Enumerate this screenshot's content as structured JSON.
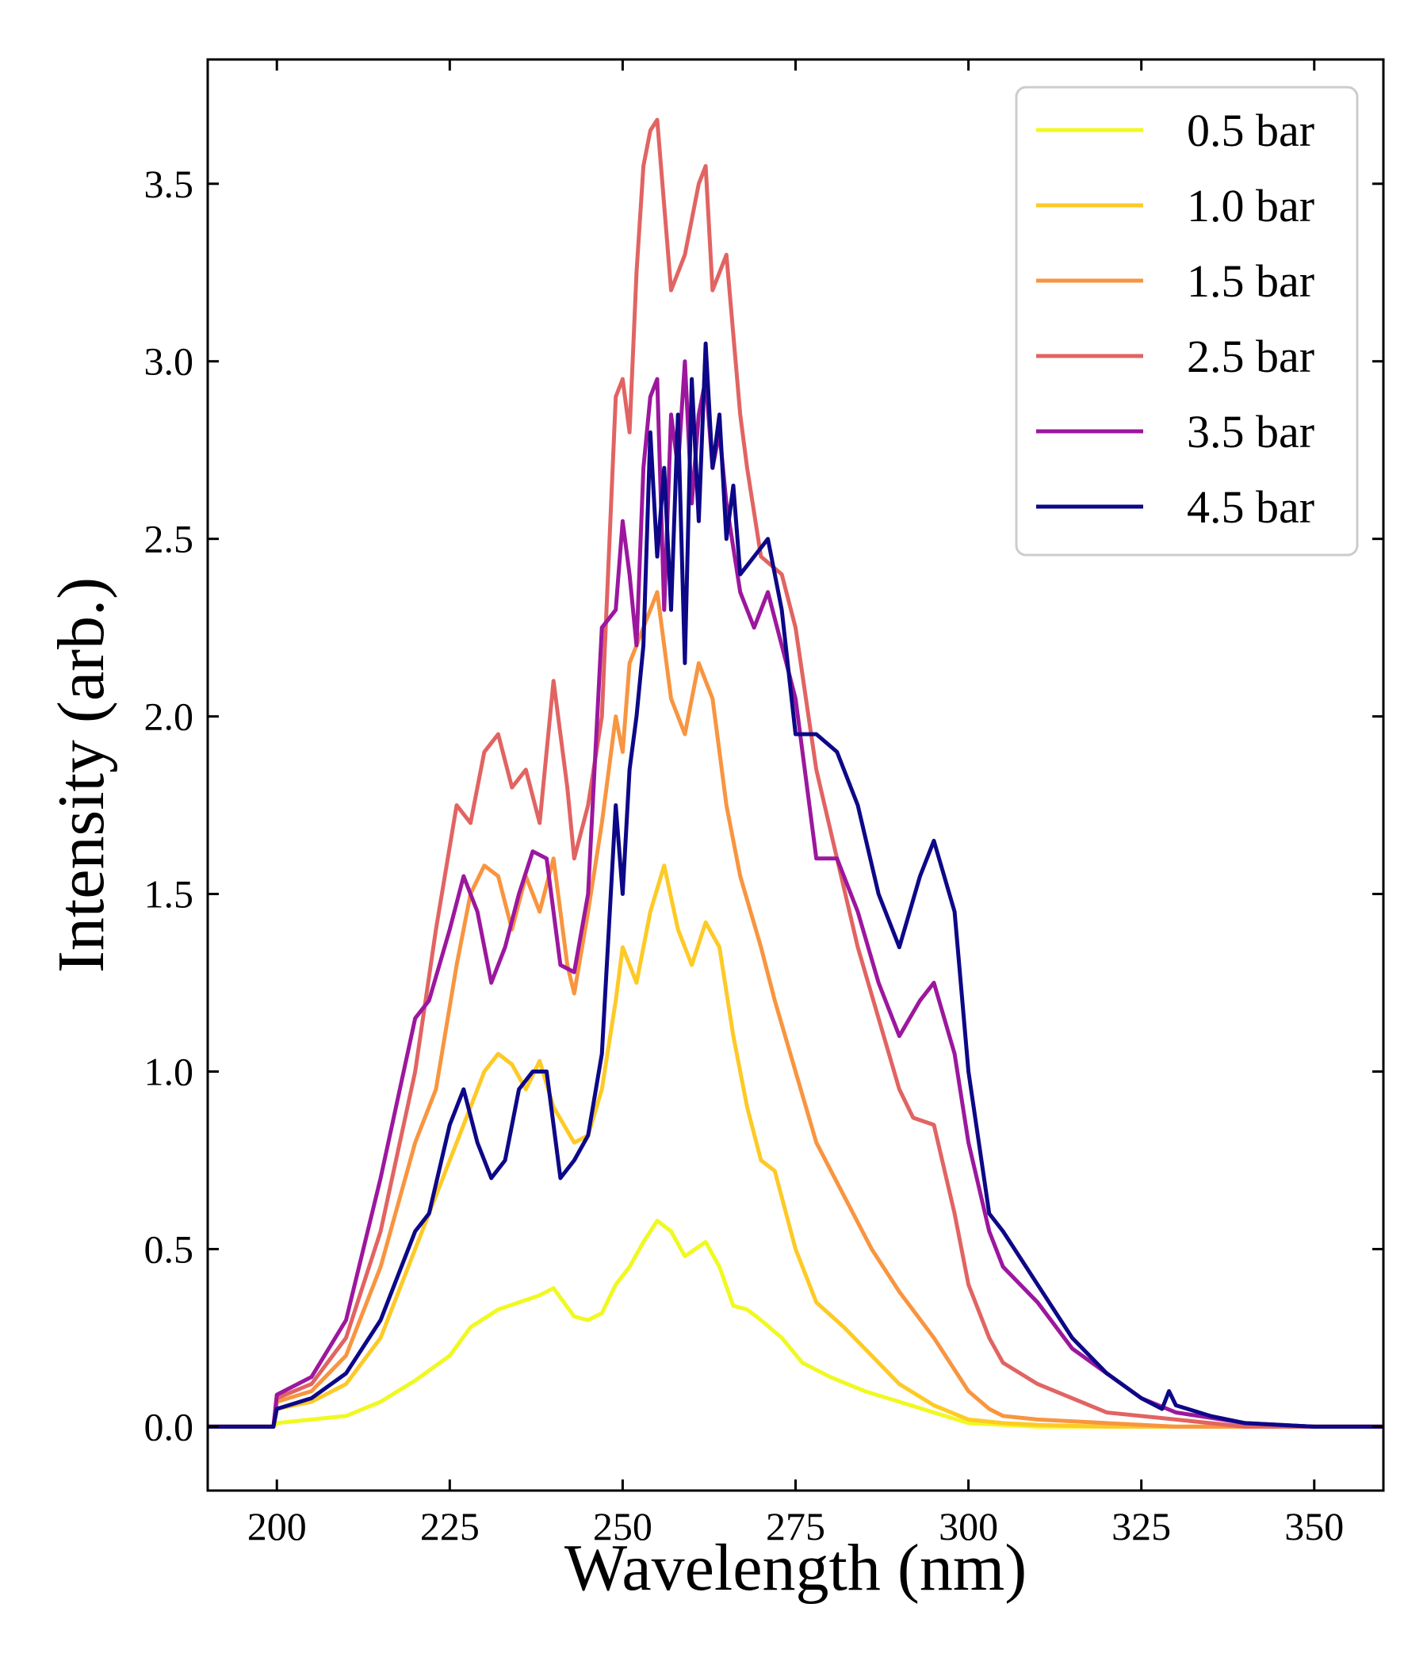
{
  "chart_data": {
    "type": "line",
    "title": "",
    "xlabel": "Wavelength (nm)",
    "ylabel": "Intensity (arb.)",
    "xlim": [
      190,
      360
    ],
    "ylim": [
      -0.18,
      3.85
    ],
    "xticks": [
      200,
      225,
      250,
      275,
      300,
      325,
      350
    ],
    "xtick_labels": [
      "200",
      "225",
      "250",
      "275",
      "300",
      "325",
      "350"
    ],
    "yticks": [
      0.0,
      0.5,
      1.0,
      1.5,
      2.0,
      2.5,
      3.0,
      3.5
    ],
    "ytick_labels": [
      "0.0",
      "0.5",
      "1.0",
      "1.5",
      "2.0",
      "2.5",
      "3.0",
      "3.5"
    ],
    "grid": false,
    "legend_position": "top-right",
    "series": [
      {
        "name": "0.5 bar",
        "color": "#f0f921",
        "x": [
          190,
          199.5,
          200,
          205,
          210,
          215,
          220,
          225,
          228,
          232,
          235,
          238,
          240,
          243,
          245,
          247,
          249,
          251,
          253,
          255,
          257,
          259,
          262,
          264,
          266,
          268,
          270,
          273,
          276,
          280,
          285,
          290,
          295,
          300,
          305,
          310,
          320,
          330,
          340,
          350,
          360
        ],
        "y": [
          0.0,
          0.0,
          0.01,
          0.02,
          0.03,
          0.07,
          0.13,
          0.2,
          0.28,
          0.33,
          0.35,
          0.37,
          0.39,
          0.31,
          0.3,
          0.32,
          0.4,
          0.45,
          0.52,
          0.58,
          0.55,
          0.48,
          0.52,
          0.45,
          0.34,
          0.33,
          0.3,
          0.25,
          0.18,
          0.14,
          0.1,
          0.07,
          0.04,
          0.01,
          0.005,
          0.0,
          0.0,
          0.0,
          0.0,
          0.0,
          0.0
        ]
      },
      {
        "name": "1.0 bar",
        "color": "#fdca26",
        "x": [
          190,
          199.5,
          200,
          205,
          210,
          215,
          220,
          225,
          228,
          230,
          232,
          234,
          236,
          238,
          240,
          243,
          245,
          247,
          249,
          250,
          252,
          254,
          256,
          258,
          260,
          262,
          264,
          266,
          268,
          270,
          272,
          275,
          278,
          282,
          286,
          290,
          295,
          300,
          305,
          310,
          320,
          330,
          340,
          350,
          360
        ],
        "y": [
          0.0,
          0.0,
          0.05,
          0.07,
          0.12,
          0.25,
          0.5,
          0.75,
          0.9,
          1.0,
          1.05,
          1.02,
          0.95,
          1.03,
          0.9,
          0.8,
          0.82,
          0.95,
          1.2,
          1.35,
          1.25,
          1.45,
          1.58,
          1.4,
          1.3,
          1.42,
          1.35,
          1.1,
          0.9,
          0.75,
          0.72,
          0.5,
          0.35,
          0.28,
          0.2,
          0.12,
          0.06,
          0.02,
          0.01,
          0.005,
          0.0,
          0.0,
          0.0,
          0.0,
          0.0
        ]
      },
      {
        "name": "1.5 bar",
        "color": "#f89540",
        "x": [
          190,
          199.5,
          200,
          205,
          210,
          215,
          220,
          223,
          226,
          228,
          230,
          232,
          234,
          236,
          238,
          240,
          242,
          243,
          245,
          247,
          249,
          250,
          251,
          253,
          255,
          257,
          259,
          261,
          263,
          265,
          267,
          270,
          272,
          275,
          278,
          282,
          286,
          290,
          295,
          300,
          303,
          305,
          310,
          320,
          330,
          340,
          350,
          360
        ],
        "y": [
          0.0,
          0.0,
          0.07,
          0.1,
          0.2,
          0.45,
          0.8,
          0.95,
          1.3,
          1.5,
          1.58,
          1.55,
          1.4,
          1.55,
          1.45,
          1.6,
          1.3,
          1.22,
          1.45,
          1.7,
          2.0,
          1.9,
          2.15,
          2.25,
          2.35,
          2.05,
          1.95,
          2.15,
          2.05,
          1.75,
          1.55,
          1.35,
          1.2,
          1.0,
          0.8,
          0.65,
          0.5,
          0.38,
          0.25,
          0.1,
          0.05,
          0.03,
          0.02,
          0.01,
          0.0,
          0.0,
          0.0,
          0.0
        ]
      },
      {
        "name": "2.5 bar",
        "color": "#e16462",
        "x": [
          190,
          199.5,
          200,
          205,
          210,
          215,
          220,
          223,
          226,
          228,
          230,
          232,
          234,
          236,
          238,
          240,
          242,
          243,
          245,
          247,
          249,
          250,
          251,
          252,
          253,
          254,
          255,
          257,
          259,
          261,
          262,
          263,
          265,
          267,
          268,
          270,
          273,
          275,
          278,
          281,
          284,
          287,
          290,
          292,
          295,
          298,
          300,
          303,
          305,
          310,
          320,
          330,
          340,
          350,
          360
        ],
        "y": [
          0.0,
          0.0,
          0.08,
          0.12,
          0.25,
          0.55,
          1.0,
          1.4,
          1.75,
          1.7,
          1.9,
          1.95,
          1.8,
          1.85,
          1.7,
          2.1,
          1.8,
          1.6,
          1.75,
          2.0,
          2.9,
          2.95,
          2.8,
          3.25,
          3.55,
          3.65,
          3.68,
          3.2,
          3.3,
          3.5,
          3.55,
          3.2,
          3.3,
          2.85,
          2.7,
          2.45,
          2.4,
          2.25,
          1.85,
          1.6,
          1.35,
          1.15,
          0.95,
          0.87,
          0.85,
          0.6,
          0.4,
          0.25,
          0.18,
          0.12,
          0.04,
          0.02,
          0.0,
          0.0,
          0.0
        ]
      },
      {
        "name": "3.5 bar",
        "color": "#9c179e",
        "x": [
          190,
          199.5,
          200,
          205,
          210,
          215,
          220,
          222,
          225,
          227,
          229,
          231,
          233,
          235,
          237,
          239,
          241,
          243,
          245,
          247,
          249,
          250,
          251,
          252,
          253,
          254,
          255,
          256,
          257,
          258,
          259,
          260,
          261,
          262,
          263,
          264,
          265,
          267,
          269,
          271,
          273,
          275,
          278,
          281,
          284,
          287,
          290,
          293,
          295,
          298,
          300,
          303,
          305,
          310,
          315,
          320,
          325,
          330,
          340,
          350,
          360
        ],
        "y": [
          0.0,
          0.0,
          0.09,
          0.14,
          0.3,
          0.7,
          1.15,
          1.2,
          1.4,
          1.55,
          1.45,
          1.25,
          1.35,
          1.5,
          1.62,
          1.6,
          1.3,
          1.28,
          1.5,
          2.25,
          2.3,
          2.55,
          2.4,
          2.2,
          2.7,
          2.9,
          2.95,
          2.3,
          2.85,
          2.7,
          3.0,
          2.6,
          2.85,
          2.95,
          2.7,
          2.8,
          2.6,
          2.35,
          2.25,
          2.35,
          2.2,
          2.05,
          1.6,
          1.6,
          1.45,
          1.25,
          1.1,
          1.2,
          1.25,
          1.05,
          0.8,
          0.55,
          0.45,
          0.35,
          0.22,
          0.15,
          0.08,
          0.04,
          0.01,
          0.0,
          0.0
        ]
      },
      {
        "name": "4.5 bar",
        "color": "#0d0887",
        "x": [
          190,
          199.5,
          200,
          205,
          210,
          215,
          220,
          222,
          225,
          227,
          229,
          231,
          233,
          235,
          237,
          239,
          241,
          243,
          245,
          247,
          249,
          250,
          251,
          252,
          253,
          254,
          255,
          256,
          257,
          258,
          259,
          260,
          261,
          262,
          263,
          264,
          265,
          266,
          267,
          269,
          271,
          273,
          275,
          278,
          281,
          284,
          287,
          290,
          293,
          295,
          298,
          300,
          303,
          305,
          310,
          315,
          320,
          325,
          328,
          329,
          330,
          335,
          340,
          350,
          360
        ],
        "y": [
          0.0,
          0.0,
          0.05,
          0.08,
          0.15,
          0.3,
          0.55,
          0.6,
          0.85,
          0.95,
          0.8,
          0.7,
          0.75,
          0.95,
          1.0,
          1.0,
          0.7,
          0.75,
          0.82,
          1.05,
          1.75,
          1.5,
          1.85,
          2.0,
          2.2,
          2.8,
          2.45,
          2.7,
          2.3,
          2.85,
          2.15,
          2.95,
          2.55,
          3.05,
          2.7,
          2.85,
          2.5,
          2.65,
          2.4,
          2.45,
          2.5,
          2.3,
          1.95,
          1.95,
          1.9,
          1.75,
          1.5,
          1.35,
          1.55,
          1.65,
          1.45,
          1.0,
          0.6,
          0.55,
          0.4,
          0.25,
          0.15,
          0.08,
          0.05,
          0.1,
          0.06,
          0.03,
          0.01,
          0.0,
          0.0
        ]
      }
    ]
  }
}
